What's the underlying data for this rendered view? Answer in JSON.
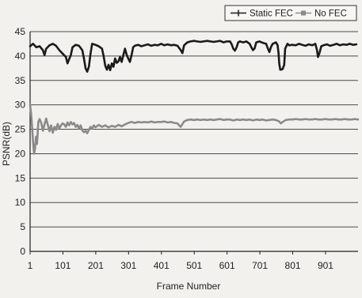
{
  "chart_data": {
    "type": "line",
    "xlabel": "Frame Number",
    "ylabel": "PSNR(dB)",
    "xlim": [
      1,
      1000
    ],
    "ylim": [
      0,
      45
    ],
    "x_ticks": [
      1,
      101,
      201,
      301,
      401,
      501,
      601,
      701,
      801,
      901
    ],
    "y_ticks": [
      0,
      5,
      10,
      15,
      20,
      25,
      30,
      35,
      40,
      45
    ],
    "grid": "horizontal",
    "legend_position": "top-right",
    "series": [
      {
        "name": "Static FEC",
        "color": "#1a1a1a",
        "marker": "plus",
        "points": [
          [
            1,
            42
          ],
          [
            10,
            42.5
          ],
          [
            20,
            41.8
          ],
          [
            30,
            42
          ],
          [
            40,
            41.2
          ],
          [
            45,
            40.2
          ],
          [
            50,
            41.5
          ],
          [
            60,
            42.2
          ],
          [
            70,
            42.5
          ],
          [
            80,
            42.1
          ],
          [
            90,
            41.2
          ],
          [
            100,
            40.5
          ],
          [
            110,
            39.8
          ],
          [
            115,
            38.5
          ],
          [
            125,
            40.2
          ],
          [
            130,
            41.8
          ],
          [
            140,
            42.3
          ],
          [
            150,
            42.1
          ],
          [
            160,
            41.2
          ],
          [
            165,
            39.5
          ],
          [
            170,
            37.5
          ],
          [
            175,
            36.8
          ],
          [
            180,
            37.8
          ],
          [
            185,
            40.5
          ],
          [
            190,
            42.5
          ],
          [
            200,
            42.3
          ],
          [
            210,
            42
          ],
          [
            220,
            41.5
          ],
          [
            225,
            40
          ],
          [
            230,
            38
          ],
          [
            235,
            37.2
          ],
          [
            240,
            38.2
          ],
          [
            245,
            37.1
          ],
          [
            250,
            38.5
          ],
          [
            255,
            37.8
          ],
          [
            260,
            39.5
          ],
          [
            265,
            38.6
          ],
          [
            270,
            38.9
          ],
          [
            275,
            39.8
          ],
          [
            280,
            38.8
          ],
          [
            285,
            40.2
          ],
          [
            290,
            41.5
          ],
          [
            295,
            40.3
          ],
          [
            300,
            39.5
          ],
          [
            305,
            38.8
          ],
          [
            310,
            40.2
          ],
          [
            315,
            41.8
          ],
          [
            320,
            42.1
          ],
          [
            330,
            42.3
          ],
          [
            340,
            42
          ],
          [
            350,
            42.2
          ],
          [
            360,
            42.4
          ],
          [
            370,
            42.1
          ],
          [
            380,
            42.3
          ],
          [
            390,
            42.2
          ],
          [
            400,
            42.5
          ],
          [
            410,
            42.2
          ],
          [
            420,
            42.4
          ],
          [
            430,
            42.2
          ],
          [
            440,
            42.3
          ],
          [
            450,
            42.1
          ],
          [
            460,
            41.2
          ],
          [
            465,
            40.6
          ],
          [
            470,
            42.2
          ],
          [
            480,
            42.8
          ],
          [
            490,
            43
          ],
          [
            500,
            43.1
          ],
          [
            510,
            43
          ],
          [
            520,
            42.9
          ],
          [
            530,
            43
          ],
          [
            540,
            43.1
          ],
          [
            550,
            43
          ],
          [
            560,
            42.9
          ],
          [
            570,
            43
          ],
          [
            580,
            43.1
          ],
          [
            590,
            42.8
          ],
          [
            600,
            43
          ],
          [
            610,
            43
          ],
          [
            615,
            42.4
          ],
          [
            620,
            41.5
          ],
          [
            625,
            41.1
          ],
          [
            630,
            41.8
          ],
          [
            635,
            42.8
          ],
          [
            640,
            43
          ],
          [
            650,
            42.8
          ],
          [
            660,
            43
          ],
          [
            670,
            42.5
          ],
          [
            675,
            41.8
          ],
          [
            680,
            41.2
          ],
          [
            685,
            41.6
          ],
          [
            690,
            42.8
          ],
          [
            700,
            43
          ],
          [
            710,
            42.7
          ],
          [
            720,
            42.5
          ],
          [
            725,
            41.6
          ],
          [
            730,
            40.8
          ],
          [
            735,
            41.9
          ],
          [
            740,
            42.5
          ],
          [
            750,
            42.8
          ],
          [
            755,
            42.2
          ],
          [
            758,
            40.5
          ],
          [
            760,
            38.5
          ],
          [
            763,
            37.2
          ],
          [
            770,
            37.3
          ],
          [
            775,
            38.2
          ],
          [
            778,
            41.5
          ],
          [
            785,
            42.5
          ],
          [
            790,
            42.2
          ],
          [
            800,
            42.3
          ],
          [
            810,
            42.2
          ],
          [
            820,
            42.5
          ],
          [
            830,
            42.3
          ],
          [
            840,
            42.1
          ],
          [
            850,
            42.4
          ],
          [
            860,
            42.2
          ],
          [
            870,
            42.5
          ],
          [
            875,
            41.2
          ],
          [
            878,
            39.8
          ],
          [
            882,
            40.5
          ],
          [
            888,
            42
          ],
          [
            895,
            42.2
          ],
          [
            905,
            42.4
          ],
          [
            915,
            42.1
          ],
          [
            925,
            42.3
          ],
          [
            935,
            42.5
          ],
          [
            945,
            42.2
          ],
          [
            955,
            42.4
          ],
          [
            965,
            42.3
          ],
          [
            975,
            42.5
          ],
          [
            985,
            42.3
          ],
          [
            995,
            42.4
          ]
        ]
      },
      {
        "name": "No FEC",
        "color": "#8a8a8a",
        "marker": "square",
        "points": [
          [
            1,
            30
          ],
          [
            4,
            28.3
          ],
          [
            7,
            25.5
          ],
          [
            10,
            22.5
          ],
          [
            13,
            20
          ],
          [
            16,
            21
          ],
          [
            19,
            23.5
          ],
          [
            22,
            22
          ],
          [
            26,
            26.5
          ],
          [
            30,
            27.1
          ],
          [
            35,
            26.3
          ],
          [
            40,
            24.7
          ],
          [
            45,
            26
          ],
          [
            50,
            27.2
          ],
          [
            55,
            25.9
          ],
          [
            60,
            24.6
          ],
          [
            65,
            25.8
          ],
          [
            70,
            24.3
          ],
          [
            75,
            25.5
          ],
          [
            80,
            24.9
          ],
          [
            85,
            26.1
          ],
          [
            90,
            25.2
          ],
          [
            95,
            25.8
          ],
          [
            100,
            26.2
          ],
          [
            105,
            26
          ],
          [
            110,
            25.5
          ],
          [
            115,
            26.4
          ],
          [
            120,
            25.8
          ],
          [
            125,
            26.5
          ],
          [
            130,
            26
          ],
          [
            135,
            26.3
          ],
          [
            140,
            25.5
          ],
          [
            145,
            25.9
          ],
          [
            150,
            25.2
          ],
          [
            155,
            25.8
          ],
          [
            160,
            24.8
          ],
          [
            165,
            24.4
          ],
          [
            170,
            24.7
          ],
          [
            175,
            24.2
          ],
          [
            180,
            24.9
          ],
          [
            185,
            25.5
          ],
          [
            190,
            25.1
          ],
          [
            195,
            25.8
          ],
          [
            200,
            25.4
          ],
          [
            210,
            25.9
          ],
          [
            220,
            25.5
          ],
          [
            230,
            25.8
          ],
          [
            240,
            25.4
          ],
          [
            250,
            25.7
          ],
          [
            260,
            25.5
          ],
          [
            270,
            25.9
          ],
          [
            280,
            25.6
          ],
          [
            290,
            26
          ],
          [
            300,
            26.3
          ],
          [
            310,
            26.5
          ],
          [
            320,
            26.3
          ],
          [
            330,
            26.5
          ],
          [
            340,
            26.4
          ],
          [
            350,
            26.5
          ],
          [
            360,
            26.4
          ],
          [
            370,
            26.6
          ],
          [
            380,
            26.4
          ],
          [
            390,
            26.5
          ],
          [
            400,
            26.5
          ],
          [
            410,
            26.6
          ],
          [
            420,
            26.4
          ],
          [
            430,
            26.5
          ],
          [
            440,
            26.3
          ],
          [
            450,
            26.2
          ],
          [
            455,
            25.8
          ],
          [
            460,
            25.5
          ],
          [
            465,
            26.1
          ],
          [
            470,
            26.6
          ],
          [
            480,
            26.9
          ],
          [
            490,
            27
          ],
          [
            500,
            26.9
          ],
          [
            510,
            27
          ],
          [
            520,
            26.9
          ],
          [
            530,
            27
          ],
          [
            540,
            26.9
          ],
          [
            550,
            27
          ],
          [
            560,
            26.9
          ],
          [
            570,
            27
          ],
          [
            580,
            27.1
          ],
          [
            590,
            26.9
          ],
          [
            600,
            27
          ],
          [
            610,
            27
          ],
          [
            620,
            26.8
          ],
          [
            630,
            27
          ],
          [
            640,
            26.9
          ],
          [
            650,
            27
          ],
          [
            660,
            26.9
          ],
          [
            670,
            27
          ],
          [
            680,
            26.8
          ],
          [
            690,
            27
          ],
          [
            700,
            26.9
          ],
          [
            710,
            27
          ],
          [
            720,
            26.8
          ],
          [
            730,
            26.9
          ],
          [
            740,
            27
          ],
          [
            750,
            26.9
          ],
          [
            760,
            26.6
          ],
          [
            765,
            26.2
          ],
          [
            770,
            26.5
          ],
          [
            780,
            26.9
          ],
          [
            790,
            27
          ],
          [
            800,
            27
          ],
          [
            810,
            27.1
          ],
          [
            820,
            27
          ],
          [
            830,
            27
          ],
          [
            840,
            27.1
          ],
          [
            850,
            27
          ],
          [
            860,
            27
          ],
          [
            870,
            27.1
          ],
          [
            880,
            27
          ],
          [
            890,
            27
          ],
          [
            900,
            27.1
          ],
          [
            910,
            27
          ],
          [
            920,
            27
          ],
          [
            930,
            27.1
          ],
          [
            940,
            27
          ],
          [
            950,
            27
          ],
          [
            960,
            27.1
          ],
          [
            970,
            27
          ],
          [
            980,
            27
          ],
          [
            990,
            27.1
          ],
          [
            1000,
            27
          ]
        ]
      }
    ]
  }
}
